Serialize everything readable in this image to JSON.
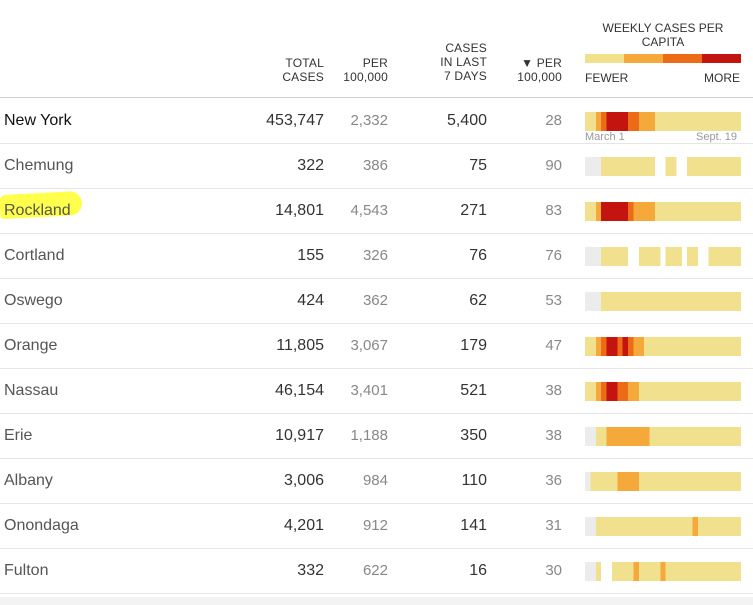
{
  "headers": {
    "total": [
      "TOTAL",
      "CASES"
    ],
    "per": [
      "PER",
      "100,000"
    ],
    "cases7": [
      "CASES",
      "IN LAST",
      "7 DAYS"
    ],
    "per100": [
      "▼ PER",
      "100,000"
    ]
  },
  "legend": {
    "title": "WEEKLY CASES PER CAPITA",
    "fewer": "FEWER",
    "more": "MORE",
    "colors": [
      "#f1e08e",
      "#f5a93a",
      "#ec6b17",
      "#c4140f"
    ]
  },
  "sparkline_labels": {
    "start": "March 1",
    "end": "Sept. 19"
  },
  "colors": {
    "none": "#ececec",
    "level1": "#f1e08e",
    "level2": "#f5a93a",
    "level3": "#ec6b17",
    "level4": "#c4140f",
    "highlight": "#ffff4c"
  },
  "rows": [
    {
      "county": "New York",
      "total": "453,747",
      "per": "2,332",
      "cases7": "5,400",
      "per100": "28",
      "weekly": [
        1,
        1,
        2,
        3,
        4,
        4,
        4,
        4,
        3,
        3,
        2,
        2,
        2,
        1,
        1,
        1,
        1,
        1,
        1,
        1,
        1,
        1,
        1,
        1,
        1,
        1,
        1,
        1,
        1
      ]
    },
    {
      "county": "Chemung",
      "total": "322",
      "per": "386",
      "cases7": "75",
      "per100": "90",
      "weekly": [
        0,
        0,
        0,
        1,
        1,
        1,
        1,
        1,
        1,
        1,
        1,
        1,
        1,
        0,
        0,
        1,
        1,
        0,
        0,
        1,
        1,
        1,
        1,
        1,
        1,
        1,
        1,
        1,
        1
      ]
    },
    {
      "county": "Rockland",
      "total": "14,801",
      "per": "4,543",
      "cases7": "271",
      "per100": "83",
      "weekly": [
        1,
        1,
        2,
        4,
        4,
        4,
        4,
        4,
        3,
        2,
        2,
        2,
        2,
        1,
        1,
        1,
        1,
        1,
        1,
        1,
        1,
        1,
        1,
        1,
        1,
        1,
        1,
        1,
        1
      ]
    },
    {
      "county": "Cortland",
      "total": "155",
      "per": "326",
      "cases7": "76",
      "per100": "76",
      "weekly": [
        0,
        0,
        0,
        1,
        1,
        1,
        1,
        1,
        0,
        0,
        1,
        1,
        1,
        1,
        0,
        1,
        1,
        1,
        0,
        1,
        1,
        0,
        0,
        1,
        1,
        1,
        1,
        1,
        1
      ]
    },
    {
      "county": "Oswego",
      "total": "424",
      "per": "362",
      "cases7": "62",
      "per100": "53",
      "weekly": [
        0,
        0,
        0,
        1,
        1,
        1,
        1,
        1,
        1,
        1,
        1,
        1,
        1,
        1,
        1,
        1,
        1,
        1,
        1,
        1,
        1,
        1,
        1,
        1,
        1,
        1,
        1,
        1,
        1
      ]
    },
    {
      "county": "Orange",
      "total": "11,805",
      "per": "3,067",
      "cases7": "179",
      "per100": "47",
      "weekly": [
        1,
        1,
        2,
        3,
        4,
        4,
        3,
        4,
        3,
        2,
        2,
        1,
        1,
        1,
        1,
        1,
        1,
        1,
        1,
        1,
        1,
        1,
        1,
        1,
        1,
        1,
        1,
        1,
        1
      ]
    },
    {
      "county": "Nassau",
      "total": "46,154",
      "per": "3,401",
      "cases7": "521",
      "per100": "38",
      "weekly": [
        1,
        1,
        2,
        3,
        4,
        4,
        3,
        3,
        2,
        2,
        1,
        1,
        1,
        1,
        1,
        1,
        1,
        1,
        1,
        1,
        1,
        1,
        1,
        1,
        1,
        1,
        1,
        1,
        1
      ]
    },
    {
      "county": "Erie",
      "total": "10,917",
      "per": "1,188",
      "cases7": "350",
      "per100": "38",
      "weekly": [
        0,
        0,
        1,
        1,
        2,
        2,
        2,
        2,
        2,
        2,
        2,
        2,
        1,
        1,
        1,
        1,
        1,
        1,
        1,
        1,
        1,
        1,
        1,
        1,
        1,
        1,
        1,
        1,
        1
      ]
    },
    {
      "county": "Albany",
      "total": "3,006",
      "per": "984",
      "cases7": "110",
      "per100": "36",
      "weekly": [
        0,
        1,
        1,
        1,
        1,
        1,
        2,
        2,
        2,
        2,
        1,
        1,
        1,
        1,
        1,
        1,
        1,
        1,
        1,
        1,
        1,
        1,
        1,
        1,
        1,
        1,
        1,
        1,
        1
      ]
    },
    {
      "county": "Onondaga",
      "total": "4,201",
      "per": "912",
      "cases7": "141",
      "per100": "31",
      "weekly": [
        0,
        0,
        1,
        1,
        1,
        1,
        1,
        1,
        1,
        1,
        1,
        1,
        1,
        1,
        1,
        1,
        1,
        1,
        1,
        1,
        2,
        1,
        1,
        1,
        1,
        1,
        1,
        1,
        1
      ]
    },
    {
      "county": "Fulton",
      "total": "332",
      "per": "622",
      "cases7": "16",
      "per100": "30",
      "weekly": [
        0,
        0,
        1,
        0,
        0,
        1,
        1,
        1,
        1,
        2,
        1,
        1,
        1,
        1,
        2,
        1,
        1,
        1,
        1,
        1,
        1,
        1,
        1,
        1,
        1,
        1,
        1,
        1,
        1
      ]
    }
  ],
  "chart_data": {
    "type": "heatmap",
    "title": "WEEKLY CASES PER CAPITA",
    "legend": [
      "FEWER",
      "MORE"
    ],
    "x_range": [
      "March 1",
      "Sept. 19"
    ],
    "color_levels": [
      0,
      1,
      2,
      3,
      4
    ],
    "series_note": "each row's weekly array gives a color level per week"
  }
}
